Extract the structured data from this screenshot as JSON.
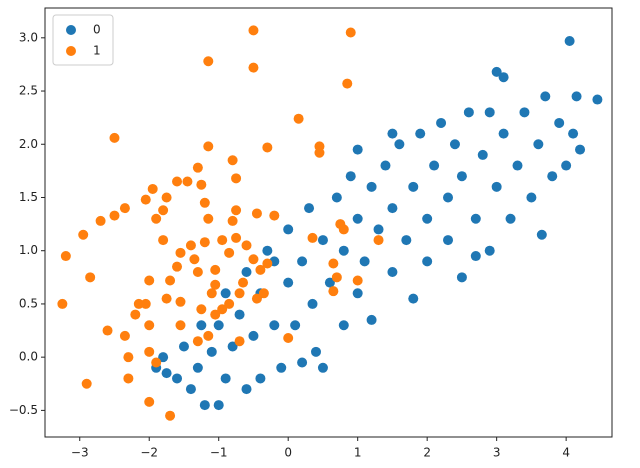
{
  "chart_data": {
    "type": "scatter",
    "xlim": [
      -3.5,
      4.66
    ],
    "ylim": [
      -0.75,
      3.28
    ],
    "xticks": [
      {
        "value": -3,
        "label": "−3"
      },
      {
        "value": -2,
        "label": "−2"
      },
      {
        "value": -1,
        "label": "−1"
      },
      0,
      1,
      2,
      3,
      4
    ],
    "yticks": [
      {
        "value": -0.5,
        "label": "−0.5"
      },
      {
        "value": 0,
        "label": "0.0"
      },
      0.5,
      {
        "value": 1,
        "label": "1.0"
      },
      1.5,
      {
        "value": 2,
        "label": "2.0"
      },
      2.5,
      {
        "value": 3,
        "label": "3.0"
      }
    ],
    "legend": "upper left",
    "series": [
      {
        "name": "0",
        "color": "#1f77b4",
        "x": [
          -1.8,
          -1.75,
          -1.6,
          -1.5,
          -1.4,
          -1.3,
          -1.25,
          -1.2,
          -1.1,
          -1.0,
          -1.0,
          -0.9,
          -0.9,
          -0.8,
          -0.7,
          -0.6,
          -0.6,
          -0.5,
          -0.4,
          -0.4,
          -0.3,
          -0.2,
          -0.1,
          0.0,
          0.0,
          0.1,
          0.2,
          0.2,
          0.3,
          0.35,
          0.5,
          0.5,
          0.6,
          0.7,
          0.8,
          0.8,
          0.9,
          1.0,
          1.0,
          1.1,
          1.2,
          1.2,
          1.3,
          1.4,
          1.5,
          1.5,
          1.6,
          1.7,
          1.8,
          1.8,
          1.9,
          2.0,
          2.0,
          2.1,
          2.2,
          2.3,
          2.3,
          2.4,
          2.5,
          2.5,
          2.6,
          2.7,
          2.8,
          2.9,
          2.9,
          3.0,
          3.0,
          3.1,
          3.1,
          3.2,
          3.3,
          3.4,
          3.5,
          3.6,
          3.7,
          3.8,
          3.9,
          4.0,
          4.05,
          4.1,
          4.15,
          4.45,
          4.2,
          -1.9,
          1.0,
          0.4,
          2.7,
          3.65,
          1.5,
          -0.2
        ],
        "y": [
          0.0,
          -0.15,
          -0.2,
          0.1,
          -0.3,
          -0.1,
          0.3,
          -0.45,
          0.05,
          -0.45,
          0.3,
          0.6,
          -0.2,
          0.1,
          0.4,
          -0.3,
          0.8,
          0.2,
          -0.2,
          0.6,
          1.0,
          0.3,
          -0.1,
          0.7,
          1.2,
          0.3,
          0.9,
          -0.05,
          1.4,
          0.5,
          1.1,
          -0.1,
          0.7,
          1.5,
          0.3,
          1.0,
          1.7,
          0.6,
          1.3,
          0.9,
          1.6,
          0.35,
          1.2,
          1.8,
          0.8,
          1.4,
          2.0,
          1.1,
          0.55,
          1.6,
          2.1,
          1.3,
          0.9,
          1.8,
          2.2,
          1.1,
          1.5,
          2.0,
          0.75,
          1.7,
          2.3,
          1.3,
          1.9,
          2.3,
          1.0,
          1.6,
          2.68,
          2.63,
          2.1,
          1.3,
          1.8,
          2.3,
          1.5,
          2.0,
          2.45,
          1.7,
          2.2,
          1.8,
          2.97,
          2.1,
          2.45,
          2.42,
          1.95,
          -0.1,
          1.95,
          0.05,
          0.95,
          1.15,
          2.1,
          0.9
        ]
      },
      {
        "name": "1",
        "color": "#ff7f0e",
        "x": [
          -0.5,
          0.9,
          -1.15,
          -0.5,
          0.85,
          0.15,
          -2.5,
          -1.15,
          -0.3,
          0.45,
          0.45,
          -0.8,
          -1.3,
          -0.75,
          -1.6,
          -1.45,
          -1.25,
          -1.95,
          -2.05,
          -1.75,
          -2.35,
          -2.5,
          -1.8,
          -1.2,
          -0.45,
          -0.2,
          -2.7,
          -1.9,
          -1.15,
          -0.75,
          -0.8,
          0.75,
          -1.8,
          -2.95,
          -1.4,
          -1.2,
          -0.95,
          -0.75,
          -0.6,
          0.35,
          0.8,
          1.3,
          -3.2,
          -1.55,
          -1.35,
          -0.85,
          -0.5,
          -0.3,
          -2.85,
          -1.6,
          -1.3,
          -1.05,
          -0.4,
          0.65,
          -2.0,
          -1.7,
          -1.05,
          -0.65,
          0.7,
          1.0,
          -3.25,
          -2.15,
          -2.05,
          -1.75,
          -1.55,
          -1.1,
          -0.7,
          -0.35,
          0.65,
          -2.2,
          -1.25,
          -1.05,
          -0.95,
          -0.85,
          -2.6,
          -2.0,
          -1.55,
          -2.35,
          -1.15,
          -0.45,
          -1.3,
          -0.7,
          -2.3,
          -2.0,
          0.0,
          -1.9,
          -2.3,
          -2.9,
          -2.0,
          -1.7
        ],
        "y": [
          3.07,
          3.05,
          2.78,
          2.72,
          2.57,
          2.24,
          2.06,
          1.98,
          1.97,
          1.98,
          1.92,
          1.85,
          1.78,
          1.68,
          1.65,
          1.65,
          1.62,
          1.58,
          1.48,
          1.5,
          1.4,
          1.33,
          1.38,
          1.45,
          1.35,
          1.33,
          1.28,
          1.3,
          1.3,
          1.38,
          1.28,
          1.25,
          1.1,
          1.15,
          1.05,
          1.08,
          1.1,
          1.12,
          1.05,
          1.12,
          1.2,
          1.1,
          0.95,
          0.98,
          0.92,
          0.98,
          0.92,
          0.88,
          0.75,
          0.85,
          0.8,
          0.82,
          0.82,
          0.88,
          0.72,
          0.72,
          0.68,
          0.7,
          0.75,
          0.72,
          0.5,
          0.5,
          0.5,
          0.55,
          0.52,
          0.6,
          0.6,
          0.6,
          0.62,
          0.4,
          0.45,
          0.4,
          0.45,
          0.5,
          0.25,
          0.3,
          0.3,
          0.2,
          0.2,
          0.55,
          0.15,
          0.15,
          0.0,
          0.05,
          0.18,
          -0.05,
          -0.2,
          -0.25,
          -0.42,
          -0.55
        ]
      }
    ]
  }
}
